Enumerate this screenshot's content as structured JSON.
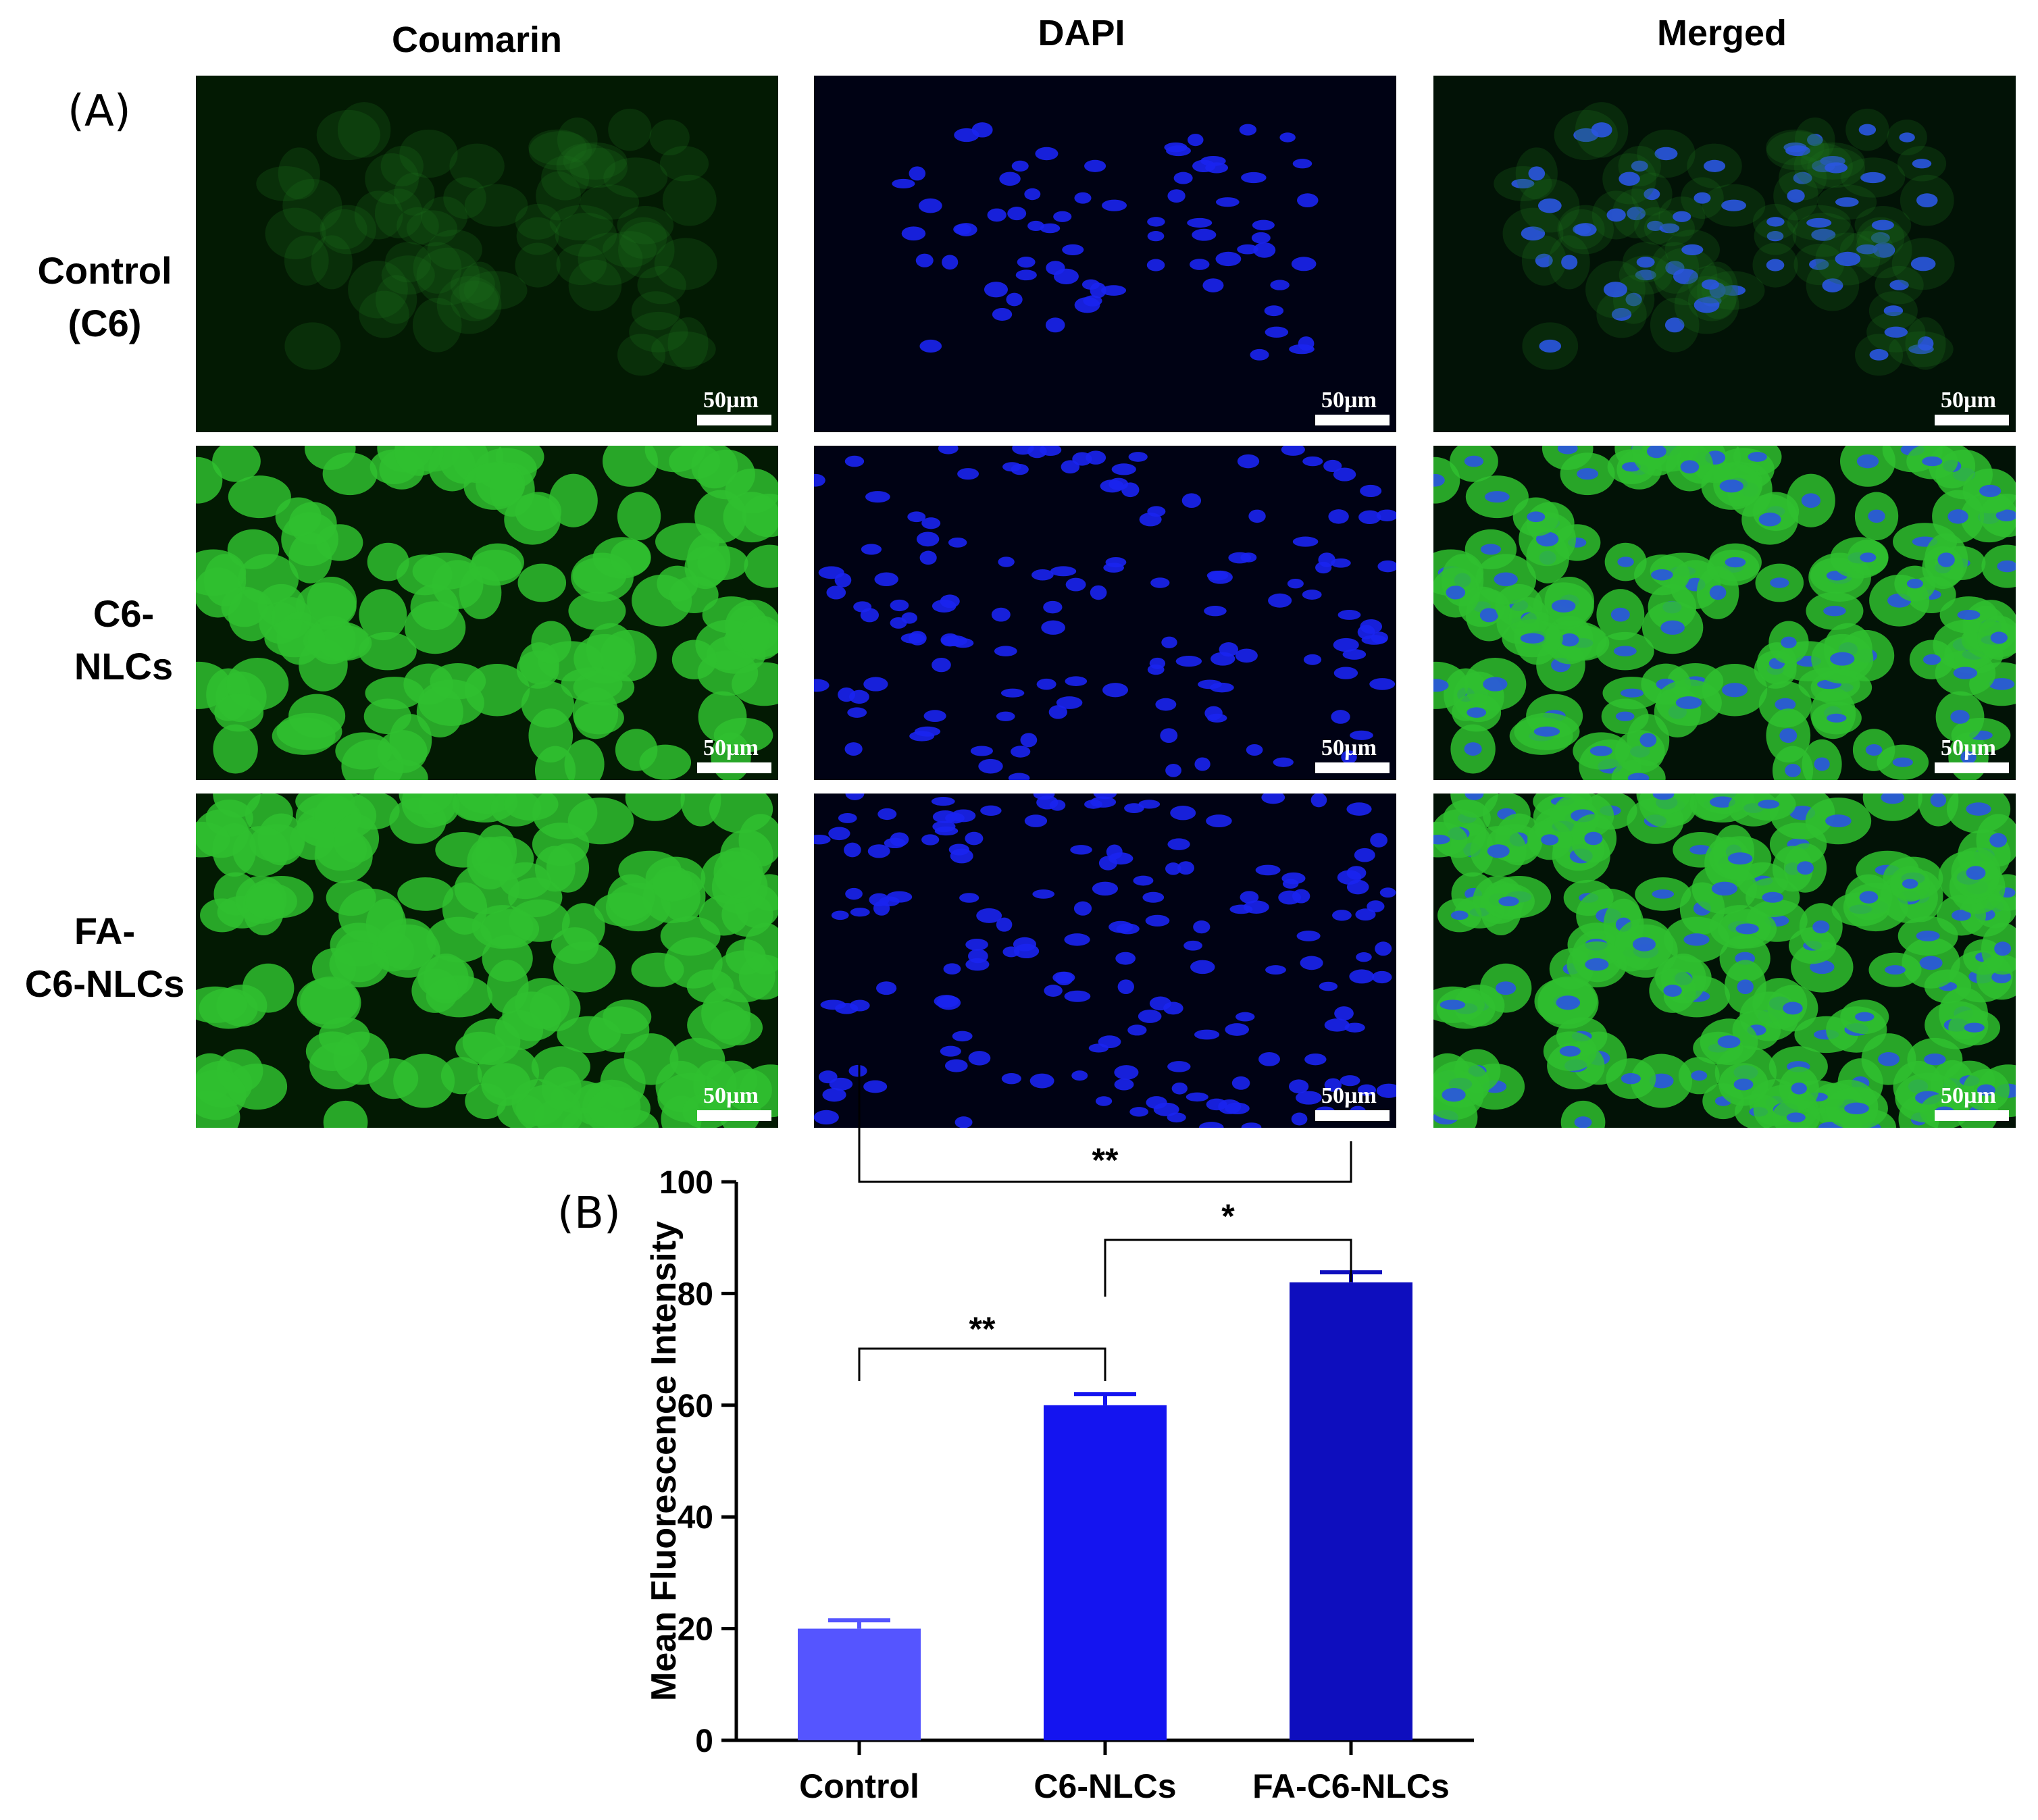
{
  "figure": {
    "panel_a_letter": "(A)",
    "panel_b_letter": "(B)",
    "columns": [
      "Coumarin",
      "DAPI",
      "Merged"
    ],
    "rows": [
      {
        "line1": "Control",
        "line2": "(C6)"
      },
      {
        "line1": "C6-",
        "line2": "NLCs"
      },
      {
        "line1": "FA-",
        "line2": "C6-NLCs"
      }
    ],
    "scale_bar_label": "50µm",
    "colors": {
      "green_stain": "#2fcc2f",
      "blue_stain": "#1a24f0",
      "background_dark": "#000815"
    }
  },
  "chart_data": {
    "type": "bar",
    "categories": [
      "Control",
      "C6-NLCs",
      "FA-C6-NLCs"
    ],
    "values": [
      20,
      60,
      82
    ],
    "errors": [
      1.5,
      2,
      1.8
    ],
    "ylabel": "Mean Fluorescence Intensity",
    "xlabel": "",
    "ylim": [
      0,
      100
    ],
    "yticks": [
      0,
      20,
      40,
      60,
      80,
      100
    ],
    "bar_colors": [
      "#5555ff",
      "#1414f0",
      "#0e0ebe"
    ],
    "grid": false,
    "significance": [
      {
        "from": 0,
        "to": 2,
        "label": "**"
      },
      {
        "from": 1,
        "to": 2,
        "label": "*"
      },
      {
        "from": 0,
        "to": 1,
        "label": "**"
      }
    ]
  }
}
